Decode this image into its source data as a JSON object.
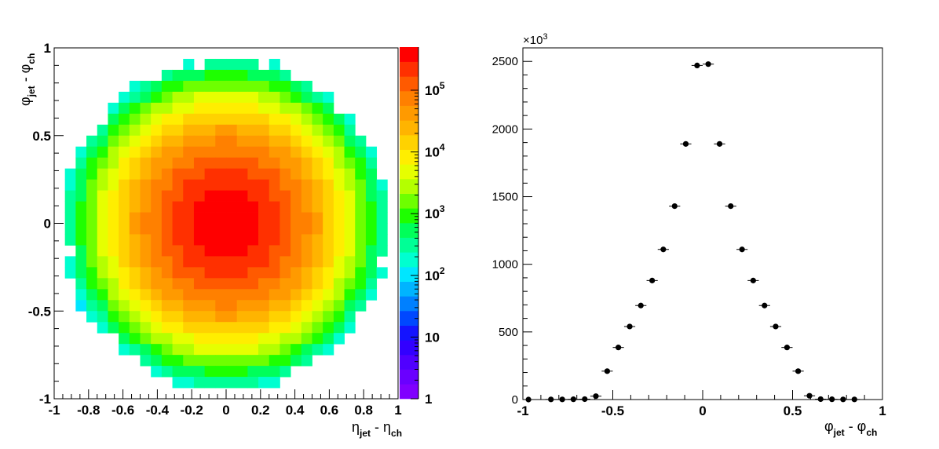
{
  "chart_data": [
    {
      "type": "heatmap",
      "xlabel_parts": [
        "η",
        "jet",
        " - η",
        "ch"
      ],
      "ylabel_parts": [
        "φ",
        "jet",
        " - φ",
        "ch"
      ],
      "xlim": [
        -1,
        1
      ],
      "ylim": [
        -1,
        1
      ],
      "x_ticks": [
        "-1",
        "-0.8",
        "-0.6",
        "-0.4",
        "-0.2",
        "0",
        "0.2",
        "0.4",
        "0.6",
        "0.8",
        "1"
      ],
      "y_ticks": [
        "-1",
        "-0.5",
        "0",
        "0.5",
        "1"
      ],
      "bins_x": 32,
      "bins_y": 32,
      "z_scale": "log",
      "z_range": [
        1,
        500000
      ],
      "z_ticks": [
        "1",
        "10",
        "10",
        "10",
        "10",
        "10"
      ],
      "z_tick_exponents": [
        "",
        "",
        "2",
        "3",
        "4",
        "5"
      ],
      "z_distribution": "2D gaussian centered at (0,0), peak ~4e5 counts, radius of occupied bins ~0.95",
      "palette": [
        "#8000ff",
        "#6a00ff",
        "#5000ff",
        "#3200ff",
        "#1414ff",
        "#0048ff",
        "#0080ff",
        "#00b4ff",
        "#00e6ff",
        "#00ffd0",
        "#00ff96",
        "#00ff5a",
        "#1eff00",
        "#6eff00",
        "#b4ff00",
        "#e6ff00",
        "#ffee00",
        "#ffd200",
        "#ffb400",
        "#ff9a00",
        "#ff8000",
        "#ff5a00",
        "#ff3000",
        "#ff0000"
      ]
    },
    {
      "type": "scatter",
      "style": "points with x error bars",
      "xlabel_parts": [
        "φ",
        "jet",
        " - φ",
        "ch"
      ],
      "ylabel": "",
      "xlim": [
        -1,
        1
      ],
      "ylim": [
        0,
        2600
      ],
      "y_multiplier_label": "×10",
      "y_multiplier_exp": "3",
      "x_ticks": [
        "-1",
        "-0.5",
        "0",
        "0.5",
        "1"
      ],
      "y_ticks": [
        "0",
        "500",
        "1000",
        "1500",
        "2000",
        "2500"
      ],
      "x": [
        -0.969,
        -0.844,
        -0.781,
        -0.719,
        -0.656,
        -0.594,
        -0.531,
        -0.469,
        -0.406,
        -0.344,
        -0.281,
        -0.219,
        -0.156,
        -0.094,
        -0.031,
        0.031,
        0.094,
        0.156,
        0.219,
        0.281,
        0.344,
        0.406,
        0.469,
        0.531,
        0.594,
        0.656,
        0.719,
        0.781,
        0.844
      ],
      "values": [
        0,
        1,
        1,
        2,
        3,
        25,
        210,
        385,
        540,
        695,
        880,
        1110,
        1430,
        1890,
        2470,
        2480,
        1890,
        1430,
        1110,
        880,
        695,
        540,
        385,
        210,
        28,
        3,
        2,
        1,
        1
      ],
      "x_halfwidth": 0.031
    }
  ]
}
